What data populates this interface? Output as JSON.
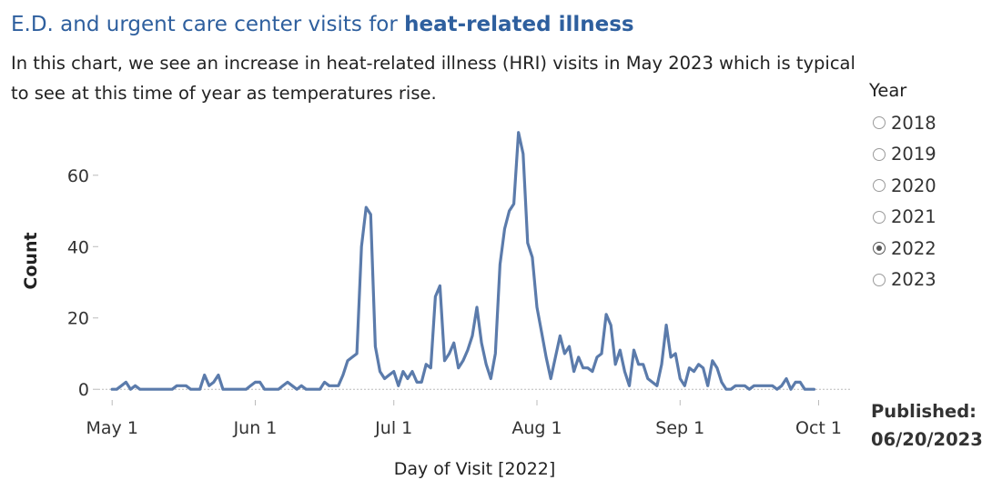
{
  "header": {
    "title_prefix": "E.D. and urgent care center visits for ",
    "title_bold": "heat-related illness",
    "subtitle": "In this chart, we see an increase in heat-related illness (HRI) visits in May 2023 which is typical to see at this time of year as temperatures rise."
  },
  "legend": {
    "title": "Year",
    "options": [
      {
        "label": "2018",
        "selected": false
      },
      {
        "label": "2019",
        "selected": false
      },
      {
        "label": "2020",
        "selected": false
      },
      {
        "label": "2021",
        "selected": false
      },
      {
        "label": "2022",
        "selected": true
      },
      {
        "label": "2023",
        "selected": false
      }
    ]
  },
  "published": {
    "label": "Published:",
    "date": "06/20/2023"
  },
  "colors": {
    "line": "#5b7bab",
    "title": "#2e5f9e",
    "zero_line": "#bbbbbb"
  },
  "chart_data": {
    "type": "line",
    "xlabel": "Day of Visit [2022]",
    "ylabel": "Count",
    "x_ticks": [
      "May 1",
      "Jun 1",
      "Jul 1",
      "Aug 1",
      "Sep 1",
      "Oct 1"
    ],
    "y_ticks": [
      0,
      20,
      40,
      60
    ],
    "xlim": [
      "2022-04-28",
      "2022-10-08"
    ],
    "ylim": [
      -3,
      76
    ],
    "grid": false,
    "series": [
      {
        "points": [
          [
            "2022-05-01",
            0
          ],
          [
            "2022-05-02",
            0
          ],
          [
            "2022-05-03",
            1
          ],
          [
            "2022-05-04",
            2
          ],
          [
            "2022-05-05",
            0
          ],
          [
            "2022-05-06",
            1
          ],
          [
            "2022-05-07",
            0
          ],
          [
            "2022-05-08",
            0
          ],
          [
            "2022-05-09",
            0
          ],
          [
            "2022-05-10",
            0
          ],
          [
            "2022-05-11",
            0
          ],
          [
            "2022-05-12",
            0
          ],
          [
            "2022-05-13",
            0
          ],
          [
            "2022-05-14",
            0
          ],
          [
            "2022-05-15",
            1
          ],
          [
            "2022-05-16",
            1
          ],
          [
            "2022-05-17",
            1
          ],
          [
            "2022-05-18",
            0
          ],
          [
            "2022-05-19",
            0
          ],
          [
            "2022-05-20",
            0
          ],
          [
            "2022-05-21",
            4
          ],
          [
            "2022-05-22",
            1
          ],
          [
            "2022-05-23",
            2
          ],
          [
            "2022-05-24",
            4
          ],
          [
            "2022-05-25",
            0
          ],
          [
            "2022-05-26",
            0
          ],
          [
            "2022-05-27",
            0
          ],
          [
            "2022-05-28",
            0
          ],
          [
            "2022-05-29",
            0
          ],
          [
            "2022-05-30",
            0
          ],
          [
            "2022-05-31",
            1
          ],
          [
            "2022-06-01",
            2
          ],
          [
            "2022-06-02",
            2
          ],
          [
            "2022-06-03",
            0
          ],
          [
            "2022-06-04",
            0
          ],
          [
            "2022-06-05",
            0
          ],
          [
            "2022-06-06",
            0
          ],
          [
            "2022-06-07",
            1
          ],
          [
            "2022-06-08",
            2
          ],
          [
            "2022-06-09",
            1
          ],
          [
            "2022-06-10",
            0
          ],
          [
            "2022-06-11",
            1
          ],
          [
            "2022-06-12",
            0
          ],
          [
            "2022-06-13",
            0
          ],
          [
            "2022-06-14",
            0
          ],
          [
            "2022-06-15",
            0
          ],
          [
            "2022-06-16",
            2
          ],
          [
            "2022-06-17",
            1
          ],
          [
            "2022-06-18",
            1
          ],
          [
            "2022-06-19",
            1
          ],
          [
            "2022-06-20",
            4
          ],
          [
            "2022-06-21",
            8
          ],
          [
            "2022-06-22",
            9
          ],
          [
            "2022-06-23",
            10
          ],
          [
            "2022-06-24",
            40
          ],
          [
            "2022-06-25",
            51
          ],
          [
            "2022-06-26",
            49
          ],
          [
            "2022-06-27",
            12
          ],
          [
            "2022-06-28",
            5
          ],
          [
            "2022-06-29",
            3
          ],
          [
            "2022-06-30",
            4
          ],
          [
            "2022-07-01",
            5
          ],
          [
            "2022-07-02",
            1
          ],
          [
            "2022-07-03",
            5
          ],
          [
            "2022-07-04",
            3
          ],
          [
            "2022-07-05",
            5
          ],
          [
            "2022-07-06",
            2
          ],
          [
            "2022-07-07",
            2
          ],
          [
            "2022-07-08",
            7
          ],
          [
            "2022-07-09",
            6
          ],
          [
            "2022-07-10",
            26
          ],
          [
            "2022-07-11",
            29
          ],
          [
            "2022-07-12",
            8
          ],
          [
            "2022-07-13",
            10
          ],
          [
            "2022-07-14",
            13
          ],
          [
            "2022-07-15",
            6
          ],
          [
            "2022-07-16",
            8
          ],
          [
            "2022-07-17",
            11
          ],
          [
            "2022-07-18",
            15
          ],
          [
            "2022-07-19",
            23
          ],
          [
            "2022-07-20",
            13
          ],
          [
            "2022-07-21",
            7
          ],
          [
            "2022-07-22",
            3
          ],
          [
            "2022-07-23",
            10
          ],
          [
            "2022-07-24",
            35
          ],
          [
            "2022-07-25",
            45
          ],
          [
            "2022-07-26",
            50
          ],
          [
            "2022-07-27",
            52
          ],
          [
            "2022-07-28",
            72
          ],
          [
            "2022-07-29",
            66
          ],
          [
            "2022-07-30",
            41
          ],
          [
            "2022-07-31",
            37
          ],
          [
            "2022-08-01",
            23
          ],
          [
            "2022-08-02",
            16
          ],
          [
            "2022-08-03",
            9
          ],
          [
            "2022-08-04",
            3
          ],
          [
            "2022-08-05",
            9
          ],
          [
            "2022-08-06",
            15
          ],
          [
            "2022-08-07",
            10
          ],
          [
            "2022-08-08",
            12
          ],
          [
            "2022-08-09",
            5
          ],
          [
            "2022-08-10",
            9
          ],
          [
            "2022-08-11",
            6
          ],
          [
            "2022-08-12",
            6
          ],
          [
            "2022-08-13",
            5
          ],
          [
            "2022-08-14",
            9
          ],
          [
            "2022-08-15",
            10
          ],
          [
            "2022-08-16",
            21
          ],
          [
            "2022-08-17",
            18
          ],
          [
            "2022-08-18",
            7
          ],
          [
            "2022-08-19",
            11
          ],
          [
            "2022-08-20",
            5
          ],
          [
            "2022-08-21",
            1
          ],
          [
            "2022-08-22",
            11
          ],
          [
            "2022-08-23",
            7
          ],
          [
            "2022-08-24",
            7
          ],
          [
            "2022-08-25",
            3
          ],
          [
            "2022-08-26",
            2
          ],
          [
            "2022-08-27",
            1
          ],
          [
            "2022-08-28",
            7
          ],
          [
            "2022-08-29",
            18
          ],
          [
            "2022-08-30",
            9
          ],
          [
            "2022-08-31",
            10
          ],
          [
            "2022-09-01",
            3
          ],
          [
            "2022-09-02",
            1
          ],
          [
            "2022-09-03",
            6
          ],
          [
            "2022-09-04",
            5
          ],
          [
            "2022-09-05",
            7
          ],
          [
            "2022-09-06",
            6
          ],
          [
            "2022-09-07",
            1
          ],
          [
            "2022-09-08",
            8
          ],
          [
            "2022-09-09",
            6
          ],
          [
            "2022-09-10",
            2
          ],
          [
            "2022-09-11",
            0
          ],
          [
            "2022-09-12",
            0
          ],
          [
            "2022-09-13",
            1
          ],
          [
            "2022-09-14",
            1
          ],
          [
            "2022-09-15",
            1
          ],
          [
            "2022-09-16",
            0
          ],
          [
            "2022-09-17",
            1
          ],
          [
            "2022-09-18",
            1
          ],
          [
            "2022-09-19",
            1
          ],
          [
            "2022-09-20",
            1
          ],
          [
            "2022-09-21",
            1
          ],
          [
            "2022-09-22",
            0
          ],
          [
            "2022-09-23",
            1
          ],
          [
            "2022-09-24",
            3
          ],
          [
            "2022-09-25",
            0
          ],
          [
            "2022-09-26",
            2
          ],
          [
            "2022-09-27",
            2
          ],
          [
            "2022-09-28",
            0
          ],
          [
            "2022-09-29",
            0
          ],
          [
            "2022-09-30",
            0
          ]
        ]
      }
    ]
  }
}
